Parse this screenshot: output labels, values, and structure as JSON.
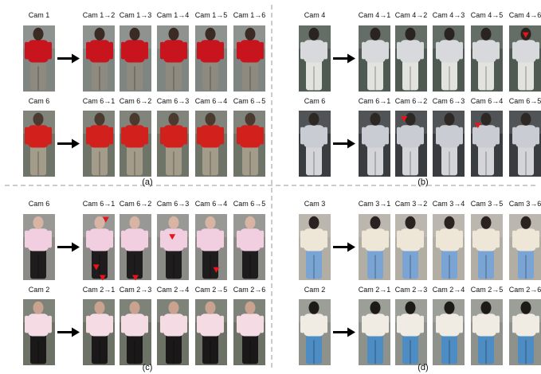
{
  "panels": [
    {
      "letter": "(a)",
      "rows": [
        {
          "source": "Cam 1",
          "targets": [
            "Cam 1→2",
            "Cam 1→3",
            "Cam 1→4",
            "Cam 1→5",
            "Cam 1→6"
          ],
          "colors": {
            "top": "#c8141c",
            "bottom": "#8f8a80",
            "bg": "#7f8580",
            "head": "#3a2c24"
          }
        },
        {
          "source": "Cam 6",
          "targets": [
            "Cam 6→1",
            "Cam 6→2",
            "Cam 6→3",
            "Cam 6→4",
            "Cam 6→5"
          ],
          "colors": {
            "top": "#d2201c",
            "bottom": "#a49c8a",
            "bg": "#6f7468",
            "head": "#4a3a30"
          }
        }
      ]
    },
    {
      "letter": "(b)",
      "rows": [
        {
          "source": "Cam 4",
          "targets": [
            "Cam 4→1",
            "Cam 4→2",
            "Cam 4→3",
            "Cam 4→5",
            "Cam 4→6"
          ],
          "colors": {
            "top": "#d7d9dc",
            "bottom": "#e2e2df",
            "bg": "#4f5a52",
            "head": "#2a2420"
          }
        },
        {
          "source": "Cam 6",
          "targets": [
            "Cam 6→1",
            "Cam 6→2",
            "Cam 6→3",
            "Cam 6→4",
            "Cam 6→5"
          ],
          "colors": {
            "top": "#c9ccd2",
            "bottom": "#d3d5d8",
            "bg": "#3a3d40",
            "head": "#2e2824"
          }
        }
      ]
    },
    {
      "letter": "(c)",
      "rows": [
        {
          "source": "Cam 6",
          "targets": [
            "Cam 6→1",
            "Cam 6→2",
            "Cam 6→3",
            "Cam 6→4",
            "Cam 6→5"
          ],
          "colors": {
            "top": "#f2cfe0",
            "bottom": "#1e1c1c",
            "bg": "#8a8a86",
            "head": "#d8b4a4"
          }
        },
        {
          "source": "Cam 2",
          "targets": [
            "Cam 2→1",
            "Cam 2→3",
            "Cam 2→4",
            "Cam 2→5",
            "Cam 2→6"
          ],
          "colors": {
            "top": "#f4dbe4",
            "bottom": "#1a1818",
            "bg": "#6c7266",
            "head": "#c9a290"
          }
        }
      ]
    },
    {
      "letter": "(d)",
      "rows": [
        {
          "source": "Cam 3",
          "targets": [
            "Cam 3→1",
            "Cam 3→2",
            "Cam 3→4",
            "Cam 3→5",
            "Cam 3→6"
          ],
          "colors": {
            "top": "#eee6d6",
            "bottom": "#7aa4d4",
            "bg": "#b2aea4",
            "head": "#2a2220"
          }
        },
        {
          "source": "Cam 2",
          "targets": [
            "Cam 2→1",
            "Cam 2→3",
            "Cam 2→4",
            "Cam 2→5",
            "Cam 2→6"
          ],
          "colors": {
            "top": "#f0ece4",
            "bottom": "#4e8cc4",
            "bg": "#8e928a",
            "head": "#1e1a18"
          }
        }
      ]
    }
  ],
  "highlight_color": "#e8141c",
  "arrow_color": "#000000",
  "divider_color": "#999999"
}
